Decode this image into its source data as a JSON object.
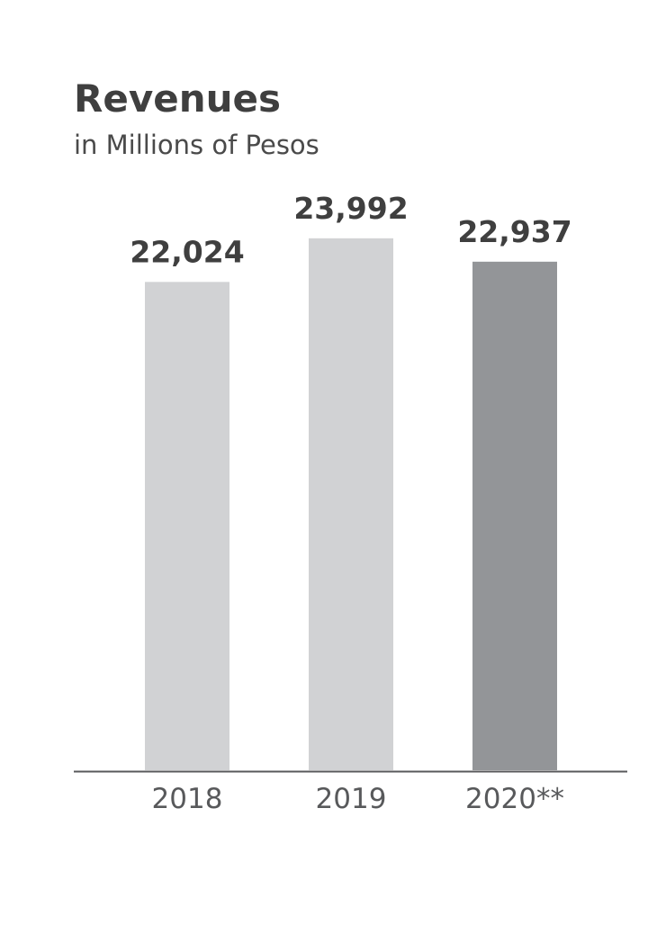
{
  "chart_data": {
    "type": "bar",
    "title": "Revenues",
    "subtitle": "in Millions of Pesos",
    "categories": [
      "2018",
      "2019",
      "2020**"
    ],
    "values": [
      22024,
      23992,
      22937
    ],
    "value_labels": [
      "22,024",
      "23,992",
      "22,937"
    ],
    "colors": [
      "#d1d2d4",
      "#d1d2d4",
      "#939598"
    ],
    "ylim": [
      0,
      25000
    ]
  }
}
